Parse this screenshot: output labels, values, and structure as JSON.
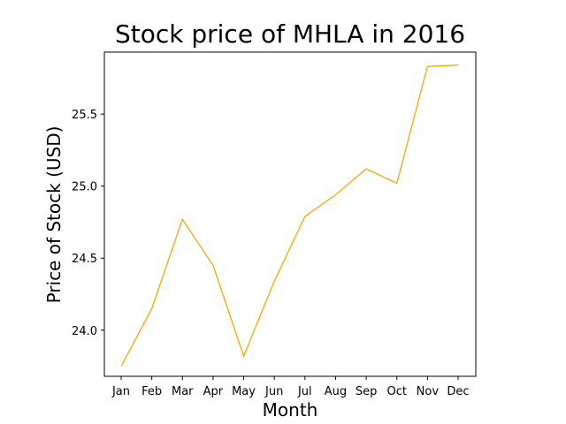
{
  "chart_data": {
    "type": "line",
    "title": "Stock price of MHLA in 2016",
    "xlabel": "Month",
    "ylabel": "Price of Stock (USD)",
    "categories": [
      "Jan",
      "Feb",
      "Mar",
      "Apr",
      "May",
      "Jun",
      "Jul",
      "Aug",
      "Sep",
      "Oct",
      "Nov",
      "Dec"
    ],
    "series": [
      {
        "values": [
          23.75,
          24.15,
          24.77,
          24.45,
          23.82,
          24.34,
          24.79,
          24.94,
          25.12,
          25.02,
          25.83,
          25.84
        ],
        "color": "#ffa500"
      }
    ],
    "ylim": [
      23.68,
      25.93
    ],
    "yticks": [
      {
        "value": 24.0,
        "label": "24.0"
      },
      {
        "value": 24.5,
        "label": "24.5"
      },
      {
        "value": 25.0,
        "label": "25.0"
      },
      {
        "value": 25.5,
        "label": "25.5"
      }
    ],
    "grid": false,
    "legend": "none"
  }
}
